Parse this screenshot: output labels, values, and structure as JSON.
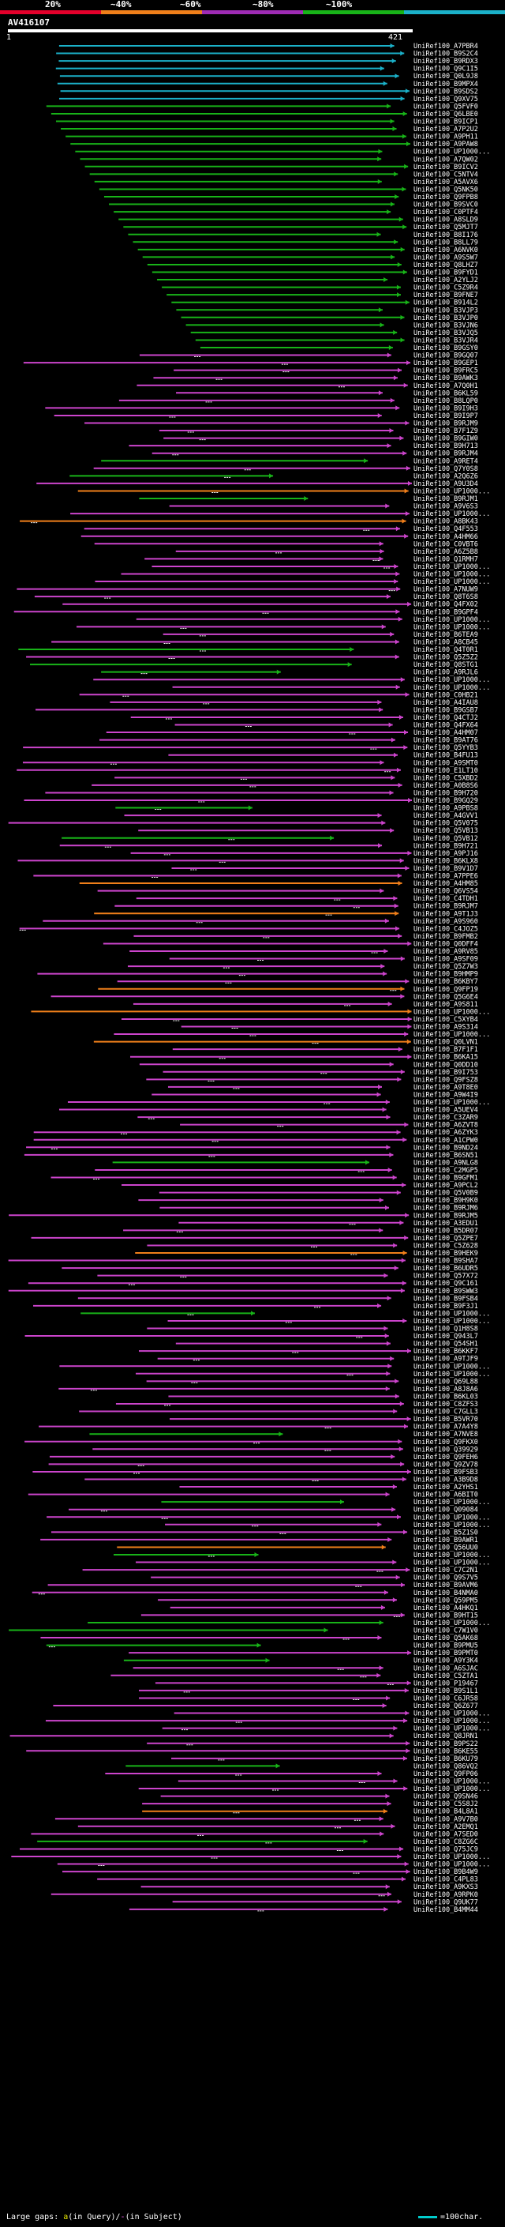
{
  "scale": {
    "labels": [
      "20%",
      "~40%",
      "~60%",
      "~80%",
      "~100%"
    ],
    "colors": [
      "#e4002b",
      "#f07f1a",
      "#9e2bb4",
      "#18b318",
      "#1bb1c9"
    ]
  },
  "query": {
    "name": "AV416107",
    "start": "1",
    "end": "421"
  },
  "hits": [
    "UniRef100_A7PBR4",
    "UniRef100_B9S2C4",
    "UniRef100_B9RDX3",
    "UniRef100_Q9C1I5",
    "UniRef100_Q0L9J8",
    "UniRef100_B9MPX4",
    "UniRef100_B9SDS2",
    "UniRef100_Q9XV75",
    "UniRef100_Q5FVF0",
    "UniRef100_Q6LBE0",
    "UniRef100_B9ICP1",
    "UniRef100_A7P2U2",
    "UniRef100_A9PH11",
    "UniRef100_A9PAW8",
    "UniRef100_UP1000...",
    "UniRef100_A7QW02",
    "UniRef100_B9ICV2",
    "UniRef100_C5NTV4",
    "UniRef100_A5AVX6",
    "UniRef100_Q5NK50",
    "UniRef100_Q9FPB8",
    "UniRef100_B9SVC0",
    "UniRef100_C0PTF4",
    "UniRef100_A8SLD9",
    "UniRef100_Q5MJT7",
    "UniRef100_B8I176",
    "UniRef100_B8LL79",
    "UniRef100_A6NVK0",
    "UniRef100_A9S5W7",
    "UniRef100_Q8LHZ7",
    "UniRef100_B9FYD1",
    "UniRef100_A2YLJ2",
    "UniRef100_C5Z9R4",
    "UniRef100_B9FNE7",
    "UniRef100_B914L2",
    "UniRef100_B3VJP3",
    "UniRef100_B3VJP0",
    "UniRef100_B3VJN6",
    "UniRef100_B3VJQ5",
    "UniRef100_B3VJR4",
    "UniRef100_B9GSY0",
    "UniRef100_B9GQ07",
    "UniRef100_B9GEP1",
    "UniRef100_B9FRC5",
    "UniRef100_B9AWK3",
    "UniRef100_A7Q0H1",
    "UniRef100_B6KL59",
    "UniRef100_B8LQP0",
    "UniRef100_B9I9H3",
    "UniRef100_B9I9P7",
    "UniRef100_B9RJM9",
    "UniRef100_B7F1Z9",
    "UniRef100_B9GIW0",
    "UniRef100_B9H713",
    "UniRef100_B9RJM4",
    "UniRef100_A9RET4",
    "UniRef100_Q7Y0S8",
    "UniRef100_A2Q6Z6",
    "UniRef100_A9U3D4",
    "UniRef100_UP1000...",
    "UniRef100_B9RJM1",
    "UniRef100_A9V6S3",
    "UniRef100_UP1000...",
    "UniRef100_A8BK43",
    "UniRef100_Q4F553",
    "UniRef100_A4HM66",
    "UniRef100_C0VBT6",
    "UniRef100_A6Z5B8",
    "UniRef100_Q1RMH7",
    "UniRef100_UP1000...",
    "UniRef100_UP1000...",
    "UniRef100_UP1000...",
    "UniRef100_A7NUW9",
    "UniRef100_Q8T6S8",
    "UniRef100_Q4FX02",
    "UniRef100_B9GPF4",
    "UniRef100_UP1000...",
    "UniRef100_UP1000...",
    "UniRef100_B6TEA9",
    "UniRef100_A8CB45",
    "UniRef100_Q4T0R1",
    "UniRef100_Q5Z5Z2",
    "UniRef100_Q8STG1",
    "UniRef100_A9RJL6",
    "UniRef100_UP1000...",
    "UniRef100_UP1000...",
    "UniRef100_C0HB21",
    "UniRef100_A4IAU8",
    "UniRef100_B9GSB7",
    "UniRef100_Q4CTJ2",
    "UniRef100_Q4FX64",
    "UniRef100_A4HM07",
    "UniRef100_B9AT76",
    "UniRef100_Q5YYB3",
    "UniRef100_B4FU13",
    "UniRef100_A9SMT0",
    "UniRef100_E1LT10",
    "UniRef100_C5XBD2",
    "UniRef100_A0B8S6",
    "UniRef100_B9H720",
    "UniRef100_B9GQ29",
    "UniRef100_A9PBS8",
    "UniRef100_A4GVV1",
    "UniRef100_Q5V075",
    "UniRef100_Q5VB13",
    "UniRef100_Q5VB12",
    "UniRef100_B9H721",
    "UniRef100_A9PJ16",
    "UniRef100_B6KLX8",
    "UniRef100_B9V1D7",
    "UniRef100_A7PPE6",
    "UniRef100_A4HM85",
    "UniRef100_Q6VS54",
    "UniRef100_C4TDH1",
    "UniRef100_B9RJM7",
    "UniRef100_A9T1J3",
    "UniRef100_A9S960",
    "UniRef100_C4JOZ5",
    "UniRef100_B9FMB2",
    "UniRef100_Q0DFF4",
    "UniRef100_A9RV85",
    "UniRef100_A9SF09",
    "UniRef100_Q5Z7W3",
    "UniRef100_B9HMP9",
    "UniRef100_B6KBY7",
    "UniRef100_Q9FP19",
    "UniRef100_Q5G6E4",
    "UniRef100_A9S811",
    "UniRef100_UP1000...",
    "UniRef100_C5XYB4",
    "UniRef100_A9S314",
    "UniRef100_UP1000...",
    "UniRef100_Q0LVN1",
    "UniRef100_B7F1F1",
    "UniRef100_B6KA15",
    "UniRef100_Q0DD10",
    "UniRef100_B9I753",
    "UniRef100_Q9FSZ8",
    "UniRef100_A9T8E0",
    "UniRef100_A9W4I9",
    "UniRef100_UP1000...",
    "UniRef100_A5UEV4",
    "UniRef100_C3ZAR9",
    "UniRef100_A6ZVT8",
    "UniRef100_A6ZYK3",
    "UniRef100_A1CPW0",
    "UniRef100_B9ND24",
    "UniRef100_B6SN51",
    "UniRef100_A9NLG8",
    "UniRef100_C2MGP5",
    "UniRef100_B9GFM1",
    "UniRef100_A9PCL2",
    "UniRef100_Q5V0B9",
    "UniRef100_B9H9K0",
    "UniRef100_B9RJM6",
    "UniRef100_B9RJM5",
    "UniRef100_A3EDU1",
    "UniRef100_B5DR07",
    "UniRef100_Q5ZPE7",
    "UniRef100_C5Z628",
    "UniRef100_B9HEK9",
    "UniRef100_B9SHA7",
    "UniRef100_B6UDR5",
    "UniRef100_Q57X72",
    "UniRef100_Q9C161",
    "UniRef100_B9SWW3",
    "UniRef100_B9FSB4",
    "UniRef100_B9F3J1",
    "UniRef100_UP1000...",
    "UniRef100_UP1000...",
    "UniRef100_Q1H8S8",
    "UniRef100_Q943L7",
    "UniRef100_Q54SH1",
    "UniRef100_B6KKF7",
    "UniRef100_A9TJF9",
    "UniRef100_UP1000...",
    "UniRef100_UP1000...",
    "UniRef100_Q69L88",
    "UniRef100_A8J8A6",
    "UniRef100_B6KL03",
    "UniRef100_C8ZFS3",
    "UniRef100_C7GLL3",
    "UniRef100_B5VR70",
    "UniRef100_A7A4Y8",
    "UniRef100_A7NVE8",
    "UniRef100_Q9FKX0",
    "UniRef100_Q39929",
    "UniRef100_Q9FEH6",
    "UniRef100_Q9ZV78",
    "UniRef100_B9FSB3",
    "UniRef100_A3B9D8",
    "UniRef100_A2YHS1",
    "UniRef100_A6BIT0",
    "UniRef100_UP1000...",
    "UniRef100_Q09084",
    "UniRef100_UP1000...",
    "UniRef100_UP1000...",
    "UniRef100_B5Z1S0",
    "UniRef100_B9AWR1",
    "UniRef100_Q56UU0",
    "UniRef100_UP1000...",
    "UniRef100_UP1000...",
    "UniRef100_C7C2N1",
    "UniRef100_Q9S7V5",
    "UniRef100_B9AVM6",
    "UniRef100_B4NMA0",
    "UniRef100_Q59PM5",
    "UniRef100_A4HKQ1",
    "UniRef100_B9HT15",
    "UniRef100_UP1000...",
    "UniRef100_C7W1V0",
    "UniRef100_Q5AK68",
    "UniRef100_B9PMU5",
    "UniRef100_B9PMT0",
    "UniRef100_A9Y3K4",
    "UniRef100_A6SJAC",
    "UniRef100_C5ZTA1",
    "UniRef100_P19467",
    "UniRef100_B9S1L1",
    "UniRef100_C6JR58",
    "UniRef100_Q6Z677",
    "UniRef100_UP1000...",
    "UniRef100_UP1000...",
    "UniRef100_UP1000...",
    "UniRef100_Q8JRN1",
    "UniRef100_B9PS22",
    "UniRef100_B6KE55",
    "UniRef100_B6KU79",
    "UniRef100_Q86VQ2",
    "UniRef100_Q9FP06",
    "UniRef100_UP1000...",
    "UniRef100_UP1000...",
    "UniRef100_Q9SN46",
    "UniRef100_C5S8J2",
    "UniRef100_B4L8A1",
    "UniRef100_A9V7B0",
    "UniRef100_A2EMQ1",
    "UniRef100_A7SED0",
    "UniRef100_C8ZG6C",
    "UniRef100_Q75JC9",
    "UniRef100_UP1000...",
    "UniRef100_UP1000...",
    "UniRef100_B9B4W9",
    "UniRef100_C4PL83",
    "UniRef100_A9KXS3",
    "UniRef100_A9RPK0",
    "UniRef100_Q9UK77",
    "UniRef100_B4MM44"
  ],
  "footer": {
    "prefix": "Large gaps:",
    "gapA": "a",
    "gapA_text": "(in Query)/",
    "gapB": "-",
    "gapB_text": "(in Subject)",
    "legend": "=100char."
  }
}
